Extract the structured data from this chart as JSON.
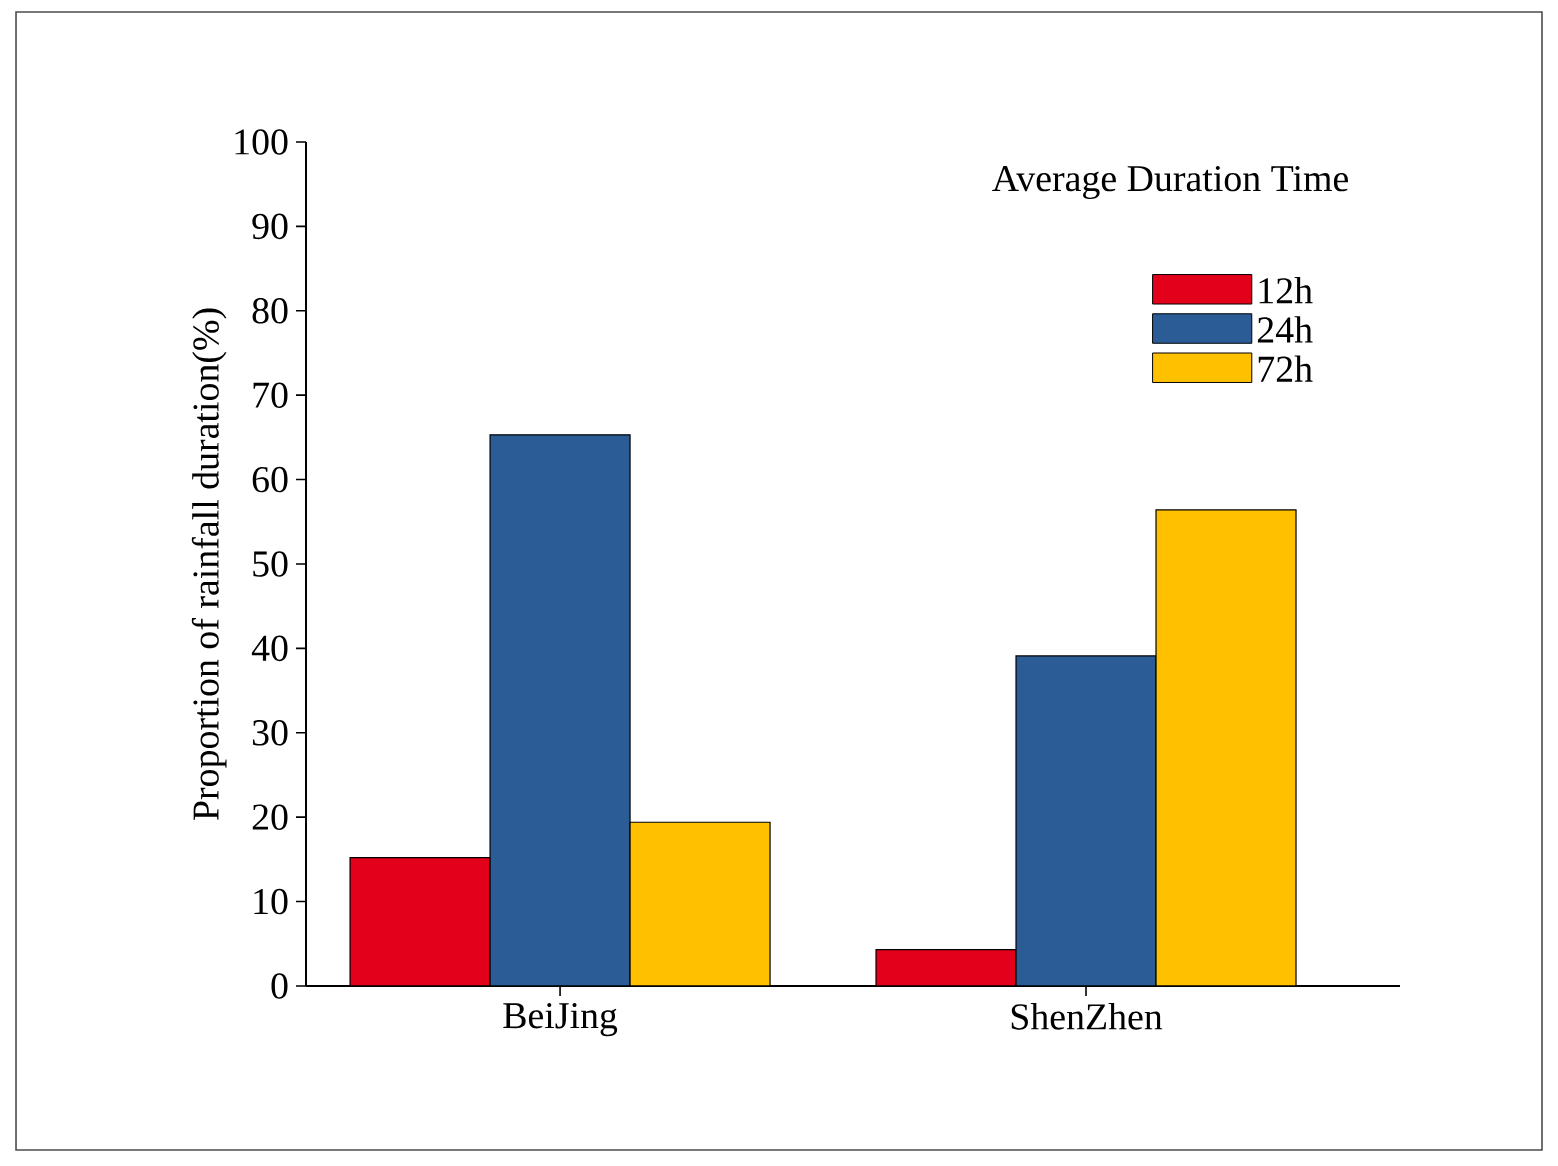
{
  "chart_data": {
    "type": "bar",
    "ylabel": "Proportion of rainfall duration(%)",
    "legend_title": "Average Duration Time",
    "categories": [
      "BeiJing",
      "ShenZhen"
    ],
    "series": [
      {
        "name": "12h",
        "color": "#e3001b",
        "values": [
          15.2,
          4.3
        ]
      },
      {
        "name": "24h",
        "color": "#2b5c96",
        "values": [
          65.3,
          39.1
        ]
      },
      {
        "name": "72h",
        "color": "#ffc000",
        "values": [
          19.4,
          56.4
        ]
      }
    ],
    "ylim": [
      0,
      100
    ],
    "yticks": [
      0,
      10,
      20,
      30,
      40,
      50,
      60,
      70,
      80,
      90,
      100
    ],
    "legend": "top right",
    "grid": false
  }
}
